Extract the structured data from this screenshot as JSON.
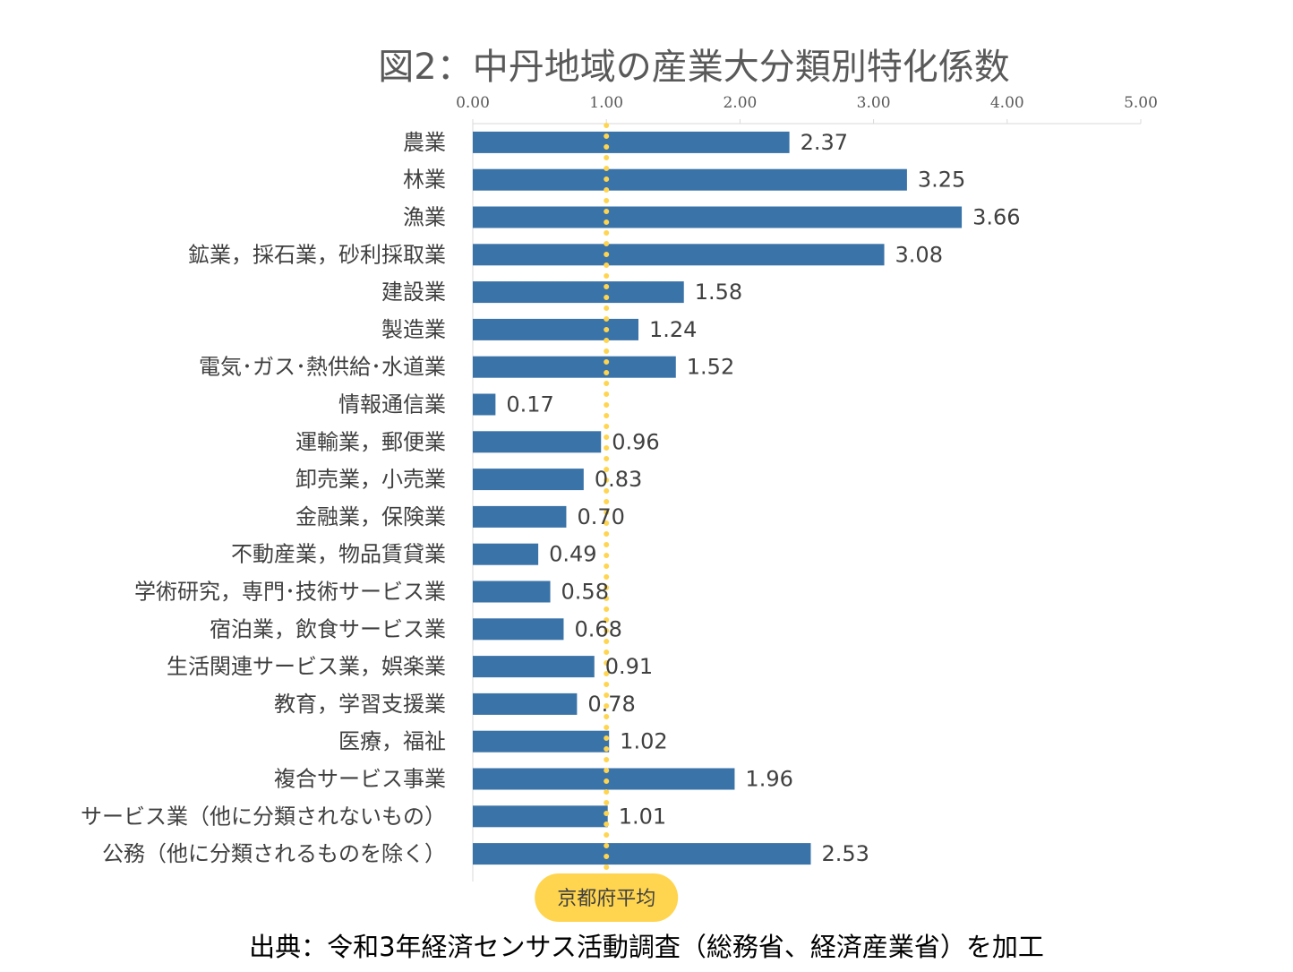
{
  "chart_data": {
    "type": "bar",
    "orientation": "horizontal",
    "title": "図2：中丹地域の産業大分類別特化係数",
    "xlim": [
      0,
      5
    ],
    "x_ticks": [
      "0.00",
      "1.00",
      "2.00",
      "3.00",
      "4.00",
      "5.00"
    ],
    "grid": false,
    "bar_color": "#3A73A8",
    "categories": [
      "農業",
      "林業",
      "漁業",
      "鉱業，採石業，砂利採取業",
      "建設業",
      "製造業",
      "電気･ガス･熱供給･水道業",
      "情報通信業",
      "運輸業，郵便業",
      "卸売業，小売業",
      "金融業，保険業",
      "不動産業，物品賃貸業",
      "学術研究，専門･技術サービス業",
      "宿泊業，飲食サービス業",
      "生活関連サービス業，娯楽業",
      "教育，学習支援業",
      "医療，福祉",
      "複合サービス事業",
      "サービス業（他に分類されないもの）",
      "公務（他に分類されるものを除く）"
    ],
    "values": [
      2.37,
      3.25,
      3.66,
      3.08,
      1.58,
      1.24,
      1.52,
      0.17,
      0.96,
      0.83,
      0.7,
      0.49,
      0.58,
      0.68,
      0.91,
      0.78,
      1.02,
      1.96,
      1.01,
      2.53
    ],
    "value_labels": [
      "2.37",
      "3.25",
      "3.66",
      "3.08",
      "1.58",
      "1.24",
      "1.52",
      "0.17",
      "0.96",
      "0.83",
      "0.70",
      "0.49",
      "0.58",
      "0.68",
      "0.91",
      "0.78",
      "1.02",
      "1.96",
      "1.01",
      "2.53"
    ],
    "reference_line": {
      "value": 1.0,
      "label": "京都府平均",
      "color": "#FFD54F",
      "style": "dotted"
    }
  },
  "source_note": "出典：令和3年経済センサス活動調査（総務省、経済産業省）を加工"
}
